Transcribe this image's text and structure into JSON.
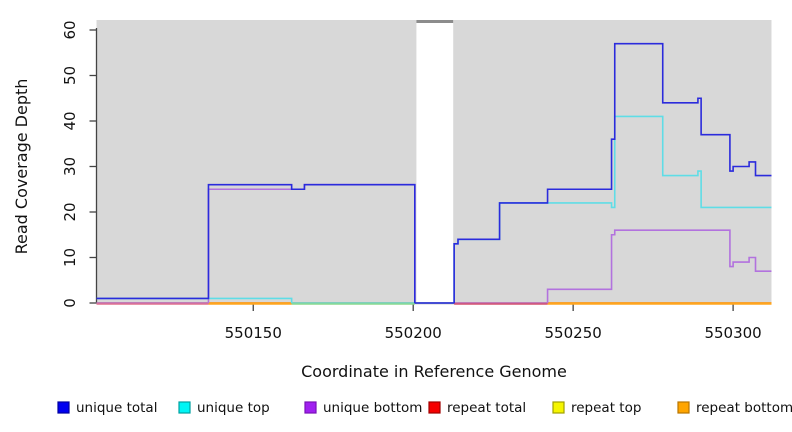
{
  "chart_data": {
    "type": "line",
    "subtype": "step-coverage-plot",
    "title": "",
    "xlabel": "Coordinate in Reference Genome",
    "ylabel": "Read Coverage Depth",
    "x_range": [
      550101,
      550312
    ],
    "y_range": [
      0,
      62
    ],
    "x_ticks": [
      550150,
      550200,
      550250,
      550300
    ],
    "y_ticks": [
      0,
      10,
      20,
      30,
      40,
      50,
      60
    ],
    "grid": "off",
    "plot_bg_color": "#D8D8D8",
    "axis_color": "#434343",
    "masked_region": {
      "x_start": 550201,
      "x_end": 550212.5,
      "fill": "#FFFFFF",
      "top_cap_color": "#8C8C8C"
    },
    "series": [
      {
        "name": "unique total",
        "color": "#2B2BDC",
        "steps": [
          [
            550101,
            1
          ],
          [
            550136,
            26
          ],
          [
            550162,
            25
          ],
          [
            550166,
            26
          ],
          [
            550200.5,
            0
          ],
          [
            550212.8,
            13
          ],
          [
            550214,
            14
          ],
          [
            550227,
            22
          ],
          [
            550242,
            25
          ],
          [
            550262,
            36
          ],
          [
            550263,
            57
          ],
          [
            550278,
            44
          ],
          [
            550289,
            45
          ],
          [
            550290,
            37
          ],
          [
            550299,
            29
          ],
          [
            550300,
            30
          ],
          [
            550305,
            31
          ],
          [
            550307,
            28
          ]
        ],
        "x_end": 550312
      },
      {
        "name": "unique top",
        "color": "#5FDDE6",
        "steps": [
          [
            550101,
            1
          ],
          [
            550162,
            0
          ],
          [
            550212.8,
            13
          ],
          [
            550214,
            14
          ],
          [
            550227,
            22
          ],
          [
            550262,
            21
          ],
          [
            550263,
            41
          ],
          [
            550278,
            28
          ],
          [
            550289,
            29
          ],
          [
            550290,
            21
          ]
        ],
        "x_end": 550312
      },
      {
        "name": "unique bottom",
        "color": "#B272DE",
        "steps": [
          [
            550101,
            0
          ],
          [
            550136,
            25
          ],
          [
            550166,
            26
          ],
          [
            550200.5,
            0
          ],
          [
            550242,
            3
          ],
          [
            550262,
            15
          ],
          [
            550263,
            16
          ],
          [
            550299,
            8
          ],
          [
            550300,
            9
          ],
          [
            550305,
            10
          ],
          [
            550307,
            7
          ]
        ],
        "x_end": 550312
      },
      {
        "name": "repeat total",
        "color": "#DD5566",
        "steps": [
          [
            550101,
            0
          ]
        ],
        "x_end": 550312
      },
      {
        "name": "repeat top",
        "color": "#E8E800",
        "steps": [
          [
            550101,
            0
          ]
        ],
        "x_end": 550312
      },
      {
        "name": "repeat bottom",
        "color": "#FFA51E",
        "steps": [
          [
            550101,
            0
          ]
        ],
        "x_end": 550312
      }
    ],
    "draw_order": [
      4,
      3,
      5,
      2,
      1,
      0
    ],
    "baseline_segments": [
      {
        "x_start": 550101,
        "x_end": 550136,
        "color": "#E0708A"
      },
      {
        "x_start": 550136,
        "x_end": 550162,
        "color": "#FFA51E"
      },
      {
        "x_start": 550162,
        "x_end": 550200.5,
        "color": "#8CD78C"
      },
      {
        "x_start": 550212.8,
        "x_end": 550242,
        "color": "#D4506A"
      },
      {
        "x_start": 550242,
        "x_end": 550312,
        "color": "#FFA51E"
      }
    ],
    "legend_position": "bottom",
    "legend": [
      {
        "label": "unique total",
        "fill": "#0000F0",
        "stroke": "#0000A0"
      },
      {
        "label": "unique top",
        "fill": "#00F5F5",
        "stroke": "#00A0A0"
      },
      {
        "label": "unique bottom",
        "fill": "#A020F0",
        "stroke": "#7A10B8"
      },
      {
        "label": "repeat total",
        "fill": "#F50000",
        "stroke": "#A00000"
      },
      {
        "label": "repeat top",
        "fill": "#F5F500",
        "stroke": "#A0A000"
      },
      {
        "label": "repeat bottom",
        "fill": "#FFA500",
        "stroke": "#B87400"
      }
    ]
  }
}
